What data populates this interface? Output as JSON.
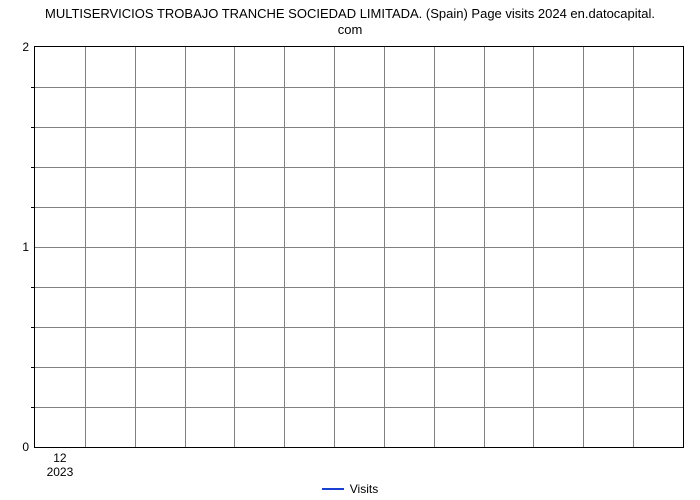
{
  "chart": {
    "type": "line",
    "title_line1": "MULTISERVICIOS TROBAJO TRANCHE SOCIEDAD LIMITADA. (Spain) Page visits 2024 en.datocapital.",
    "title_line2": "com",
    "title_fontsize": 13,
    "title_color": "#000000",
    "background_color": "#ffffff",
    "border_color": "#000000",
    "grid_color": "#808080",
    "y": {
      "min": 0,
      "max": 2,
      "major_ticks": [
        0,
        1,
        2
      ],
      "minor_row_count": 10,
      "tick_label_fontsize": 12
    },
    "x": {
      "month_label": "12",
      "year_label": "2023",
      "column_count": 13,
      "month_position_pct": 3.85,
      "tick_label_fontsize": 12
    },
    "legend": {
      "color": "#1a3fd4",
      "label": "Visits",
      "fontsize": 12
    },
    "series": {
      "name": "Visits",
      "color": "#1a3fd4",
      "values": []
    }
  }
}
